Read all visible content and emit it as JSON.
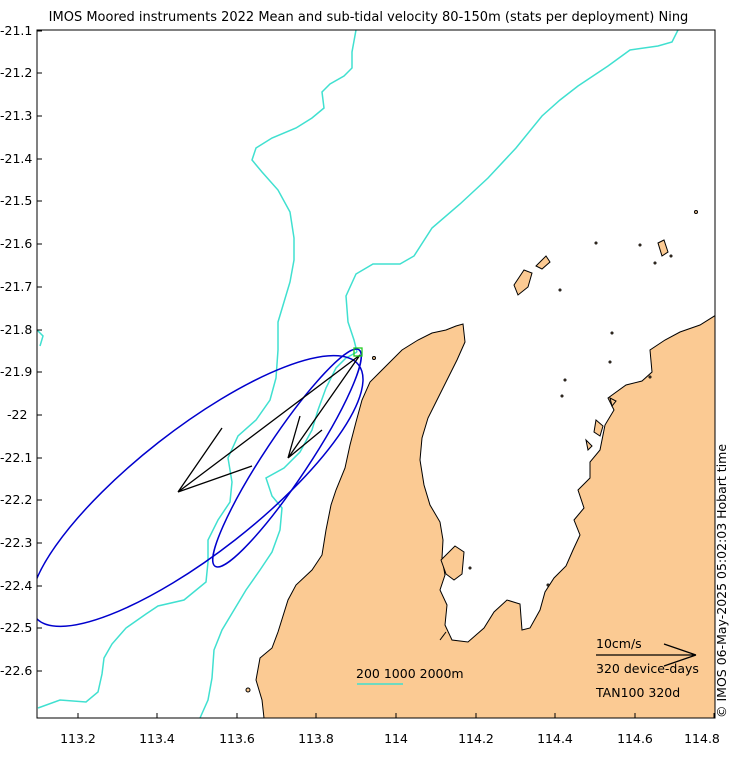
{
  "title": "IMOS Moored instruments 2022 Mean and sub-tidal velocity 80-150m (stats per deployment) Ning",
  "y_ticks": [
    "-21.1",
    "-21.2",
    "-21.3",
    "-21.4",
    "-21.5",
    "-21.6",
    "-21.7",
    "-21.8",
    "-21.9",
    "-22",
    "-22.1",
    "-22.2",
    "-22.3",
    "-22.4",
    "-22.5",
    "-22.6"
  ],
  "x_ticks": [
    "113.2",
    "113.4",
    "113.6",
    "113.8",
    "114",
    "114.2",
    "114.4",
    "114.6",
    "114.8"
  ],
  "side_label": "© IMOS 06-May-2025 05:02:03 Hobart time",
  "legend": {
    "depth_contours": "200 1000 2000m",
    "scale_label": "10cm/s",
    "device_days": "320 device-days",
    "station": "TAN100 320d"
  },
  "colors": {
    "land": "#FBCA93",
    "contour": "#40E0D0",
    "ellipse": "#0000CD",
    "vector": "#000000",
    "mooring_marker": "#22CC22"
  }
}
